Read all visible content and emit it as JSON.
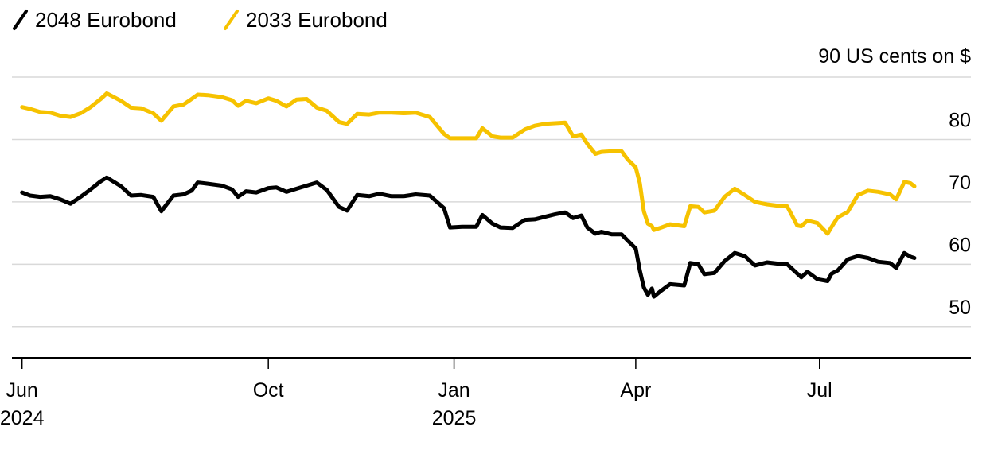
{
  "chart_data": {
    "type": "line",
    "title": "",
    "xlabel": "",
    "ylabel": "",
    "unit_label": "90 US cents on $",
    "ylim": [
      45,
      90
    ],
    "y_ticks": [
      50,
      60,
      70,
      80
    ],
    "y_tick_labels": [
      "50",
      "60",
      "70",
      "80"
    ],
    "x_range": [
      "2024-05-27",
      "2025-09-14"
    ],
    "x_ticks": [
      {
        "date": "2024-06-01",
        "label": "Jun",
        "sublabel": "2024"
      },
      {
        "date": "2024-10-01",
        "label": "Oct",
        "sublabel": ""
      },
      {
        "date": "2025-01-01",
        "label": "Jan",
        "sublabel": "2025"
      },
      {
        "date": "2025-04-01",
        "label": "Apr",
        "sublabel": ""
      },
      {
        "date": "2025-07-01",
        "label": "Jul",
        "sublabel": ""
      }
    ],
    "grid": true,
    "legend_position": "top-left",
    "series": [
      {
        "name": "2048 Eurobond",
        "color": "#000000",
        "points": [
          [
            "2024-06-01",
            71.5
          ],
          [
            "2024-06-05",
            71.0
          ],
          [
            "2024-06-10",
            70.8
          ],
          [
            "2024-06-15",
            70.9
          ],
          [
            "2024-06-20",
            70.4
          ],
          [
            "2024-06-25",
            69.7
          ],
          [
            "2024-06-30",
            70.8
          ],
          [
            "2024-07-05",
            72.0
          ],
          [
            "2024-07-10",
            73.3
          ],
          [
            "2024-07-13",
            73.9
          ],
          [
            "2024-07-20",
            72.5
          ],
          [
            "2024-07-25",
            71.0
          ],
          [
            "2024-07-30",
            71.1
          ],
          [
            "2024-08-05",
            70.8
          ],
          [
            "2024-08-09",
            68.5
          ],
          [
            "2024-08-15",
            71.0
          ],
          [
            "2024-08-20",
            71.2
          ],
          [
            "2024-08-24",
            71.8
          ],
          [
            "2024-08-27",
            73.1
          ],
          [
            "2024-09-01",
            72.9
          ],
          [
            "2024-09-08",
            72.6
          ],
          [
            "2024-09-13",
            72.0
          ],
          [
            "2024-09-16",
            70.8
          ],
          [
            "2024-09-20",
            71.7
          ],
          [
            "2024-09-25",
            71.5
          ],
          [
            "2024-10-01",
            72.2
          ],
          [
            "2024-10-05",
            72.3
          ],
          [
            "2024-10-10",
            71.6
          ],
          [
            "2024-10-15",
            72.1
          ],
          [
            "2024-10-20",
            72.6
          ],
          [
            "2024-10-25",
            73.1
          ],
          [
            "2024-10-30",
            71.9
          ],
          [
            "2024-11-05",
            69.2
          ],
          [
            "2024-11-09",
            68.6
          ],
          [
            "2024-11-14",
            71.1
          ],
          [
            "2024-11-20",
            70.9
          ],
          [
            "2024-11-25",
            71.3
          ],
          [
            "2024-12-01",
            70.9
          ],
          [
            "2024-12-07",
            70.9
          ],
          [
            "2024-12-13",
            71.2
          ],
          [
            "2024-12-20",
            71.0
          ],
          [
            "2024-12-27",
            69.0
          ],
          [
            "2024-12-30",
            65.9
          ],
          [
            "2025-01-05",
            66.0
          ],
          [
            "2025-01-12",
            66.0
          ],
          [
            "2025-01-15",
            67.9
          ],
          [
            "2025-01-20",
            66.5
          ],
          [
            "2025-01-24",
            65.9
          ],
          [
            "2025-01-30",
            65.8
          ],
          [
            "2025-02-05",
            67.1
          ],
          [
            "2025-02-10",
            67.2
          ],
          [
            "2025-02-15",
            67.6
          ],
          [
            "2025-02-20",
            68.0
          ],
          [
            "2025-02-25",
            68.3
          ],
          [
            "2025-03-01",
            67.4
          ],
          [
            "2025-03-05",
            67.8
          ],
          [
            "2025-03-08",
            65.9
          ],
          [
            "2025-03-12",
            64.9
          ],
          [
            "2025-03-15",
            65.2
          ],
          [
            "2025-03-20",
            64.8
          ],
          [
            "2025-03-25",
            64.8
          ],
          [
            "2025-03-28",
            63.8
          ],
          [
            "2025-04-01",
            62.5
          ],
          [
            "2025-04-03",
            59.0
          ],
          [
            "2025-04-05",
            56.3
          ],
          [
            "2025-04-07",
            55.1
          ],
          [
            "2025-04-09",
            56.1
          ],
          [
            "2025-04-10",
            54.8
          ],
          [
            "2025-04-13",
            55.6
          ],
          [
            "2025-04-18",
            56.8
          ],
          [
            "2025-04-25",
            56.6
          ],
          [
            "2025-04-28",
            60.2
          ],
          [
            "2025-05-02",
            60.0
          ],
          [
            "2025-05-05",
            58.4
          ],
          [
            "2025-05-10",
            58.6
          ],
          [
            "2025-05-15",
            60.5
          ],
          [
            "2025-05-20",
            61.8
          ],
          [
            "2025-05-25",
            61.3
          ],
          [
            "2025-05-30",
            59.8
          ],
          [
            "2025-06-05",
            60.3
          ],
          [
            "2025-06-10",
            60.1
          ],
          [
            "2025-06-15",
            60.0
          ],
          [
            "2025-06-20",
            58.5
          ],
          [
            "2025-06-22",
            57.9
          ],
          [
            "2025-06-25",
            58.8
          ],
          [
            "2025-06-30",
            57.6
          ],
          [
            "2025-07-05",
            57.3
          ],
          [
            "2025-07-07",
            58.5
          ],
          [
            "2025-07-10",
            59.0
          ],
          [
            "2025-07-15",
            60.8
          ],
          [
            "2025-07-20",
            61.3
          ],
          [
            "2025-07-25",
            61.0
          ],
          [
            "2025-07-30",
            60.4
          ],
          [
            "2025-08-05",
            60.2
          ],
          [
            "2025-08-08",
            59.4
          ],
          [
            "2025-08-12",
            61.8
          ],
          [
            "2025-08-15",
            61.2
          ],
          [
            "2025-08-17",
            61.0
          ]
        ]
      },
      {
        "name": "2033 Eurobond",
        "color": "#f6c200",
        "points": [
          [
            "2024-06-01",
            85.2
          ],
          [
            "2024-06-05",
            84.9
          ],
          [
            "2024-06-10",
            84.4
          ],
          [
            "2024-06-15",
            84.3
          ],
          [
            "2024-06-20",
            83.8
          ],
          [
            "2024-06-25",
            83.6
          ],
          [
            "2024-06-30",
            84.2
          ],
          [
            "2024-07-05",
            85.2
          ],
          [
            "2024-07-10",
            86.5
          ],
          [
            "2024-07-13",
            87.4
          ],
          [
            "2024-07-20",
            86.2
          ],
          [
            "2024-07-25",
            85.1
          ],
          [
            "2024-07-30",
            85.0
          ],
          [
            "2024-08-05",
            84.2
          ],
          [
            "2024-08-09",
            83.0
          ],
          [
            "2024-08-15",
            85.3
          ],
          [
            "2024-08-20",
            85.6
          ],
          [
            "2024-08-24",
            86.5
          ],
          [
            "2024-08-27",
            87.2
          ],
          [
            "2024-09-01",
            87.1
          ],
          [
            "2024-09-08",
            86.8
          ],
          [
            "2024-09-13",
            86.3
          ],
          [
            "2024-09-16",
            85.4
          ],
          [
            "2024-09-20",
            86.2
          ],
          [
            "2024-09-25",
            85.8
          ],
          [
            "2024-10-01",
            86.6
          ],
          [
            "2024-10-05",
            86.2
          ],
          [
            "2024-10-10",
            85.3
          ],
          [
            "2024-10-15",
            86.4
          ],
          [
            "2024-10-20",
            86.5
          ],
          [
            "2024-10-25",
            85.1
          ],
          [
            "2024-10-30",
            84.6
          ],
          [
            "2024-11-05",
            82.8
          ],
          [
            "2024-11-09",
            82.5
          ],
          [
            "2024-11-14",
            84.1
          ],
          [
            "2024-11-20",
            84.0
          ],
          [
            "2024-11-25",
            84.3
          ],
          [
            "2024-12-01",
            84.3
          ],
          [
            "2024-12-07",
            84.2
          ],
          [
            "2024-12-13",
            84.3
          ],
          [
            "2024-12-20",
            83.6
          ],
          [
            "2024-12-27",
            80.9
          ],
          [
            "2024-12-30",
            80.2
          ],
          [
            "2025-01-05",
            80.2
          ],
          [
            "2025-01-12",
            80.2
          ],
          [
            "2025-01-15",
            81.8
          ],
          [
            "2025-01-20",
            80.5
          ],
          [
            "2025-01-24",
            80.3
          ],
          [
            "2025-01-30",
            80.3
          ],
          [
            "2025-02-05",
            81.6
          ],
          [
            "2025-02-10",
            82.2
          ],
          [
            "2025-02-15",
            82.5
          ],
          [
            "2025-02-20",
            82.6
          ],
          [
            "2025-02-25",
            82.7
          ],
          [
            "2025-03-01",
            80.5
          ],
          [
            "2025-03-05",
            80.8
          ],
          [
            "2025-03-08",
            79.3
          ],
          [
            "2025-03-12",
            77.7
          ],
          [
            "2025-03-15",
            78.0
          ],
          [
            "2025-03-20",
            78.1
          ],
          [
            "2025-03-25",
            78.1
          ],
          [
            "2025-03-28",
            76.8
          ],
          [
            "2025-04-01",
            75.5
          ],
          [
            "2025-04-03",
            73.0
          ],
          [
            "2025-04-05",
            68.5
          ],
          [
            "2025-04-07",
            66.5
          ],
          [
            "2025-04-09",
            66.1
          ],
          [
            "2025-04-10",
            65.5
          ],
          [
            "2025-04-13",
            65.8
          ],
          [
            "2025-04-18",
            66.4
          ],
          [
            "2025-04-25",
            66.1
          ],
          [
            "2025-04-28",
            69.3
          ],
          [
            "2025-05-02",
            69.2
          ],
          [
            "2025-05-05",
            68.3
          ],
          [
            "2025-05-10",
            68.6
          ],
          [
            "2025-05-15",
            70.8
          ],
          [
            "2025-05-20",
            72.1
          ],
          [
            "2025-05-25",
            71.1
          ],
          [
            "2025-05-30",
            70.0
          ],
          [
            "2025-06-05",
            69.6
          ],
          [
            "2025-06-10",
            69.4
          ],
          [
            "2025-06-15",
            69.3
          ],
          [
            "2025-06-20",
            66.2
          ],
          [
            "2025-06-22",
            66.1
          ],
          [
            "2025-06-25",
            67.0
          ],
          [
            "2025-06-30",
            66.6
          ],
          [
            "2025-07-05",
            64.9
          ],
          [
            "2025-07-07",
            66.0
          ],
          [
            "2025-07-10",
            67.5
          ],
          [
            "2025-07-15",
            68.4
          ],
          [
            "2025-07-20",
            71.1
          ],
          [
            "2025-07-25",
            71.8
          ],
          [
            "2025-07-30",
            71.6
          ],
          [
            "2025-08-05",
            71.2
          ],
          [
            "2025-08-08",
            70.4
          ],
          [
            "2025-08-12",
            73.2
          ],
          [
            "2025-08-15",
            73.0
          ],
          [
            "2025-08-17",
            72.5
          ]
        ]
      }
    ]
  }
}
